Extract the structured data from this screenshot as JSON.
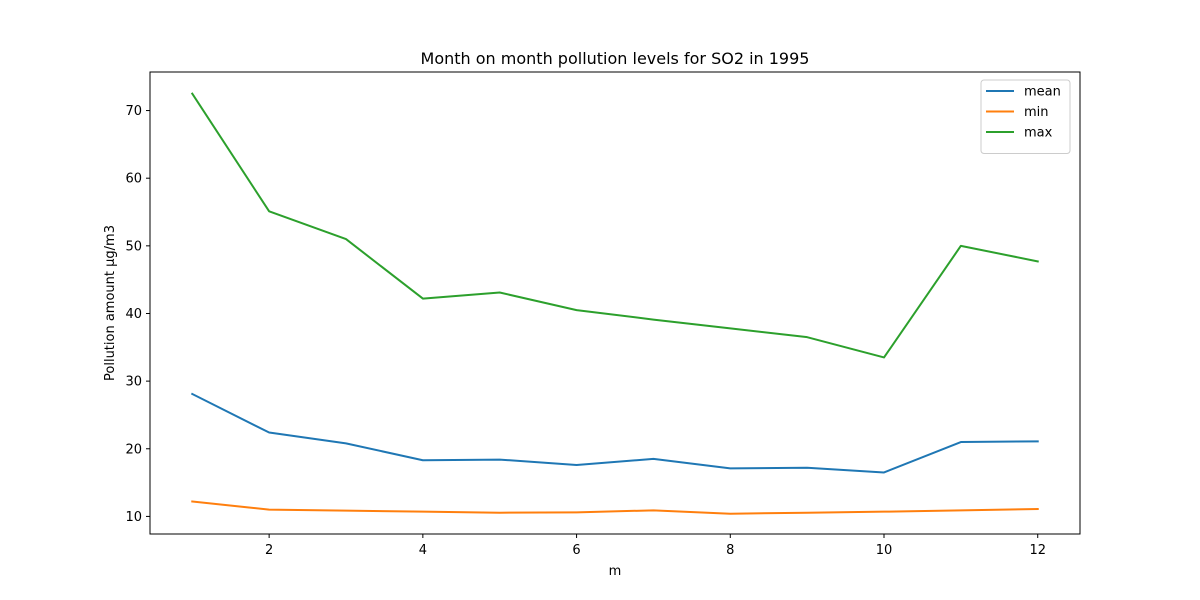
{
  "chart_data": {
    "type": "line",
    "title": "Month on month pollution levels for SO2 in 1995",
    "xlabel": "m",
    "ylabel": "Pollution amount μg/m3",
    "x": [
      1,
      2,
      3,
      4,
      5,
      6,
      7,
      8,
      9,
      10,
      11,
      12
    ],
    "xticks": [
      2,
      4,
      6,
      8,
      10,
      12
    ],
    "yticks": [
      10,
      20,
      30,
      40,
      50,
      60,
      70
    ],
    "xlim": [
      0.45,
      12.55
    ],
    "ylim": [
      7.4,
      75.7
    ],
    "grid": false,
    "legend_position": "top-right",
    "series": [
      {
        "name": "mean",
        "color": "#1f77b4",
        "values": [
          28.1,
          22.4,
          20.8,
          18.3,
          18.4,
          17.6,
          18.5,
          17.1,
          17.2,
          16.5,
          21.0,
          21.1
        ]
      },
      {
        "name": "min",
        "color": "#ff7f0e",
        "values": [
          12.2,
          11.0,
          10.85,
          10.7,
          10.55,
          10.6,
          10.9,
          10.4,
          10.55,
          10.7,
          10.9,
          11.1
        ]
      },
      {
        "name": "max",
        "color": "#2ca02c",
        "values": [
          72.5,
          55.1,
          51.0,
          42.2,
          43.1,
          40.5,
          39.1,
          37.8,
          36.5,
          33.5,
          50.0,
          47.7
        ]
      }
    ]
  }
}
